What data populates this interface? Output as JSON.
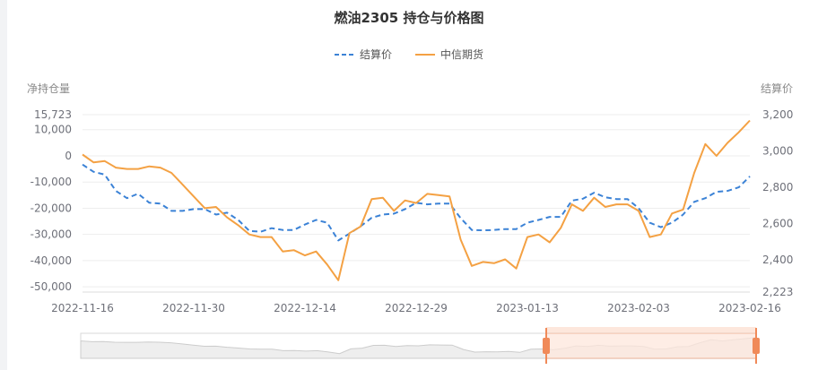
{
  "title": "燃油2305 持仓与价格图",
  "legend": {
    "settle_label": "结算价",
    "citic_label": "中信期货"
  },
  "axes": {
    "left_name": "净持仓量",
    "right_name": "结算价"
  },
  "colors": {
    "settle": "#3b82d6",
    "citic": "#f4a143",
    "grid": "#eeeeee",
    "zoom_fill": "#fde7dc",
    "zoom_handle": "#f08a59"
  },
  "chart_data": {
    "type": "line",
    "title": "燃油2305 持仓与价格图",
    "x_ticks": [
      "2022-11-16",
      "2022-11-30",
      "2022-12-14",
      "2022-12-29",
      "2023-01-13",
      "2023-02-03",
      "2023-02-16"
    ],
    "left_axis": {
      "label": "净持仓量",
      "min": -52000,
      "max": 15723,
      "ticks": [
        "15,723",
        "10,000",
        "0",
        "-10,000",
        "-20,000",
        "-30,000",
        "-40,000",
        "-50,000"
      ],
      "tick_values": [
        15723,
        10000,
        0,
        -10000,
        -20000,
        -30000,
        -40000,
        -50000
      ]
    },
    "right_axis": {
      "label": "结算价",
      "min": 2223,
      "max": 3200,
      "ticks": [
        "3,200",
        "3,000",
        "2,800",
        "2,600",
        "2,400",
        "2,223"
      ],
      "tick_values": [
        3200,
        3000,
        2800,
        2600,
        2400,
        2223
      ]
    },
    "series": [
      {
        "name": "结算价",
        "axis": "right",
        "style": "dashed",
        "values": [
          2925,
          2885,
          2870,
          2780,
          2740,
          2765,
          2715,
          2710,
          2670,
          2670,
          2680,
          2680,
          2650,
          2660,
          2620,
          2560,
          2555,
          2575,
          2565,
          2565,
          2595,
          2620,
          2605,
          2507,
          2545,
          2585,
          2632,
          2650,
          2655,
          2680,
          2715,
          2706,
          2710,
          2710,
          2630,
          2565,
          2563,
          2565,
          2570,
          2570,
          2605,
          2620,
          2637,
          2637,
          2727,
          2737,
          2770,
          2745,
          2735,
          2735,
          2685,
          2605,
          2580,
          2605,
          2650,
          2720,
          2740,
          2775,
          2780,
          2800,
          2860
        ]
      },
      {
        "name": "中信期货",
        "axis": "left",
        "values": [
          500,
          -2500,
          -2000,
          -4500,
          -5000,
          -5000,
          -4000,
          -4500,
          -6500,
          -11000,
          -15500,
          -20000,
          -19500,
          -23500,
          -26500,
          -30000,
          -31000,
          -31000,
          -36500,
          -36000,
          -38000,
          -36500,
          -41500,
          -47500,
          -29500,
          -27000,
          -16500,
          -16000,
          -21000,
          -17000,
          -18000,
          -14500,
          -15000,
          -15500,
          -32000,
          -42000,
          -40500,
          -41000,
          -39500,
          -43000,
          -31000,
          -30000,
          -33000,
          -27500,
          -18500,
          -21000,
          -16000,
          -19500,
          -18500,
          -18500,
          -21000,
          -31000,
          -30000,
          -22000,
          -20500,
          -6500,
          4500,
          0,
          5000,
          9000,
          13500
        ]
      }
    ]
  }
}
